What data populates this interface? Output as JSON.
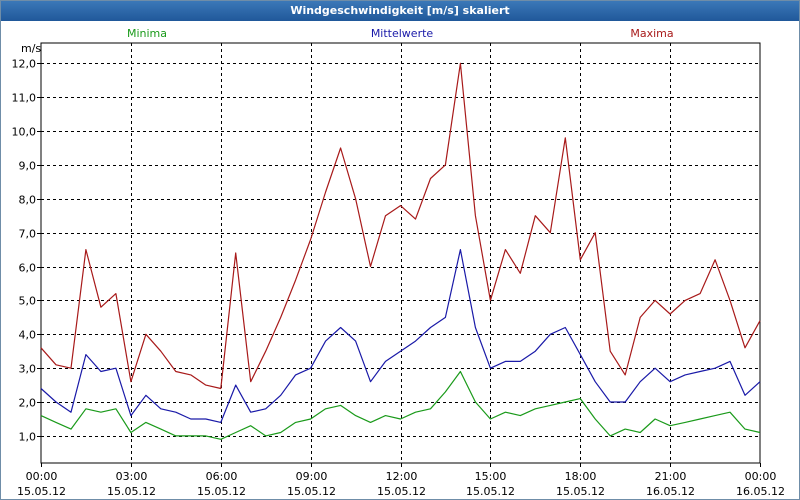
{
  "window": {
    "title": "Windgeschwindigkeit [m/s] skaliert"
  },
  "chart_data": {
    "type": "line",
    "title": "Windgeschwindigkeit [m/s] skaliert",
    "ylabel": "m/s",
    "xlabel": "",
    "ylim": [
      0.2,
      12.6
    ],
    "xlim": [
      0,
      24
    ],
    "grid": true,
    "y_ticks": [
      "1,0",
      "2,0",
      "3,0",
      "4,0",
      "5,0",
      "6,0",
      "7,0",
      "8,0",
      "9,0",
      "10,0",
      "11,0",
      "12,0"
    ],
    "x_ticks": [
      {
        "time": "00:00",
        "date": "15.05.12"
      },
      {
        "time": "03:00",
        "date": "15.05.12"
      },
      {
        "time": "06:00",
        "date": "15.05.12"
      },
      {
        "time": "09:00",
        "date": "15.05.12"
      },
      {
        "time": "12:00",
        "date": "15.05.12"
      },
      {
        "time": "15:00",
        "date": "15.05.12"
      },
      {
        "time": "18:00",
        "date": "15.05.12"
      },
      {
        "time": "21:00",
        "date": "16.05.12"
      },
      {
        "time": "00:00",
        "date": "16.05.12"
      }
    ],
    "series": [
      {
        "name": "Minima",
        "color": "#1a9a1a",
        "x": [
          0,
          0.5,
          1,
          1.5,
          2,
          2.5,
          3,
          3.5,
          4,
          4.5,
          5,
          5.5,
          6,
          6.5,
          7,
          7.5,
          8,
          8.5,
          9,
          9.5,
          10,
          10.5,
          11,
          11.5,
          12,
          12.5,
          13,
          13.5,
          14,
          14.5,
          15,
          15.5,
          16,
          16.5,
          17,
          17.5,
          18,
          18.5,
          19,
          19.5,
          20,
          20.5,
          21,
          21.5,
          22,
          22.5,
          23,
          23.5,
          24
        ],
        "values": [
          1.6,
          1.4,
          1.2,
          1.8,
          1.7,
          1.8,
          1.1,
          1.4,
          1.2,
          1.0,
          1.0,
          1.0,
          0.9,
          1.1,
          1.3,
          1.0,
          1.1,
          1.4,
          1.5,
          1.8,
          1.9,
          1.6,
          1.4,
          1.6,
          1.5,
          1.7,
          1.8,
          2.3,
          2.9,
          2.0,
          1.5,
          1.7,
          1.6,
          1.8,
          1.9,
          2.0,
          2.1,
          1.5,
          1.0,
          1.2,
          1.1,
          1.5,
          1.3,
          1.4,
          1.5,
          1.6,
          1.7,
          1.2,
          1.1
        ]
      },
      {
        "name": "Mittelwerte",
        "color": "#1a1aa8",
        "x": [
          0,
          0.5,
          1,
          1.5,
          2,
          2.5,
          3,
          3.5,
          4,
          4.5,
          5,
          5.5,
          6,
          6.5,
          7,
          7.5,
          8,
          8.5,
          9,
          9.5,
          10,
          10.5,
          11,
          11.5,
          12,
          12.5,
          13,
          13.5,
          14,
          14.5,
          15,
          15.5,
          16,
          16.5,
          17,
          17.5,
          18,
          18.5,
          19,
          19.5,
          20,
          20.5,
          21,
          21.5,
          22,
          22.5,
          23,
          23.5,
          24
        ],
        "values": [
          2.4,
          2.0,
          1.7,
          3.4,
          2.9,
          3.0,
          1.6,
          2.2,
          1.8,
          1.7,
          1.5,
          1.5,
          1.4,
          2.5,
          1.7,
          1.8,
          2.2,
          2.8,
          3.0,
          3.8,
          4.2,
          3.8,
          2.6,
          3.2,
          3.5,
          3.8,
          4.2,
          4.5,
          6.5,
          4.2,
          3.0,
          3.2,
          3.2,
          3.5,
          4.0,
          4.2,
          3.4,
          2.6,
          2.0,
          2.0,
          2.6,
          3.0,
          2.6,
          2.8,
          2.9,
          3.0,
          3.2,
          2.2,
          2.6
        ]
      },
      {
        "name": "Maxima",
        "color": "#a81a1a",
        "x": [
          0,
          0.5,
          1,
          1.5,
          2,
          2.5,
          3,
          3.5,
          4,
          4.5,
          5,
          5.5,
          6,
          6.5,
          7,
          7.5,
          8,
          8.5,
          9,
          9.5,
          10,
          10.5,
          11,
          11.5,
          12,
          12.5,
          13,
          13.5,
          14,
          14.5,
          15,
          15.5,
          16,
          16.5,
          17,
          17.5,
          18,
          18.5,
          19,
          19.5,
          20,
          20.5,
          21,
          21.5,
          22,
          22.5,
          23,
          23.5,
          24
        ],
        "values": [
          3.6,
          3.1,
          3.0,
          6.5,
          4.8,
          5.2,
          2.6,
          4.0,
          3.5,
          2.9,
          2.8,
          2.5,
          2.4,
          6.4,
          2.6,
          3.5,
          4.5,
          5.6,
          6.8,
          8.2,
          9.5,
          8.0,
          6.0,
          7.5,
          7.8,
          7.4,
          8.6,
          9.0,
          12.0,
          7.5,
          5.0,
          6.5,
          5.8,
          7.5,
          7.0,
          9.8,
          6.2,
          7.0,
          3.5,
          2.8,
          4.5,
          5.0,
          4.6,
          5.0,
          5.2,
          6.2,
          5.0,
          3.6,
          4.4
        ]
      }
    ]
  }
}
